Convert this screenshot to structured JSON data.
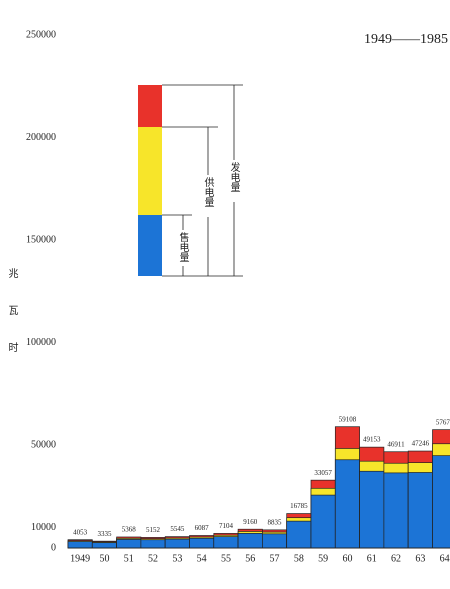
{
  "chart_data": {
    "type": "bar",
    "title": "1949——1985",
    "y_label": "兆瓦时",
    "categories": [
      "1949",
      "50",
      "51",
      "52",
      "53",
      "54",
      "55",
      "56",
      "57",
      "58",
      "59",
      "60",
      "61",
      "62",
      "63",
      "64"
    ],
    "series": [
      {
        "name": "发电量",
        "color": "#e8322b",
        "values": [
          4053,
          3335,
          5368,
          5152,
          5545,
          6087,
          7104,
          9160,
          8835,
          16785,
          33057,
          59108,
          49153,
          46911,
          47246,
          57670
        ]
      },
      {
        "name": "供电量",
        "color": "#f7e52a",
        "values": [
          3570,
          2930,
          4720,
          4530,
          4880,
          5360,
          6250,
          8060,
          7770,
          14770,
          29090,
          48500,
          42300,
          41300,
          41600,
          50800
        ]
      },
      {
        "name": "售电量",
        "color": "#1c74d6",
        "values": [
          3160,
          2600,
          4190,
          4020,
          4330,
          4750,
          5540,
          7140,
          6890,
          13090,
          25780,
          43000,
          37400,
          36600,
          36800,
          45000
        ]
      }
    ],
    "ylim": [
      0,
      250000
    ],
    "yticks": [
      0,
      10000,
      50000,
      100000,
      150000,
      200000,
      250000
    ],
    "grid": false
  }
}
